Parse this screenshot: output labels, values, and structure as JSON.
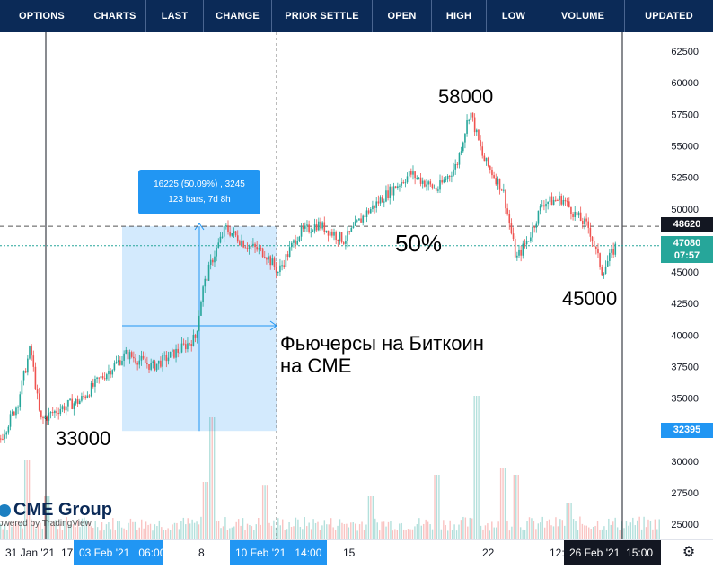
{
  "nav": {
    "tabs": [
      "OPTIONS",
      "CHARTS",
      "LAST",
      "CHANGE",
      "PRIOR SETTLE",
      "OPEN",
      "HIGH",
      "LOW",
      "VOLUME",
      "UPDATED"
    ]
  },
  "chart_data": {
    "type": "candlestick",
    "title": "",
    "colors": {
      "up": "#26a69a",
      "down": "#ef5350",
      "measure_fill": "#2196f3"
    },
    "y_axis": {
      "range": [
        23800,
        64000
      ],
      "ticks": [
        25000,
        27500,
        30000,
        32500,
        35000,
        37500,
        40000,
        42500,
        45000,
        47500,
        50000,
        52500,
        55000,
        57500,
        60000,
        62500
      ],
      "tick_labels": [
        "25000",
        "27500",
        "30000",
        "32500",
        "35000",
        "37500",
        "40000",
        "42500",
        "45000",
        "47500",
        "50000",
        "52500",
        "55000",
        "57500",
        "60000",
        "62500"
      ]
    },
    "x_axis": {
      "labels": [
        "31 Jan '21",
        "17",
        "03 Feb '21",
        "06:00",
        "8",
        "10 Feb '21",
        "14:00",
        "15",
        "22",
        "12:",
        "26 Feb '21",
        "15:00"
      ]
    },
    "price_markers": [
      {
        "label": "48620",
        "value": 48620,
        "style": "dark"
      },
      {
        "label": "47080",
        "sub": "07:57",
        "value": 47080,
        "style": "teal"
      },
      {
        "label": "32395",
        "value": 32395,
        "style": "blue"
      }
    ],
    "measure_tool": {
      "line1": "16225 (50.09%) , 3245",
      "line2": "123 bars, 7d 8h"
    },
    "annotations": {
      "high": "58000",
      "low_start": "33000",
      "low_end": "45000",
      "retrace": "50%",
      "caption_line1": "Фьючерсы на Биткоин",
      "caption_line2": "на CME"
    },
    "price_path": [
      {
        "x": 0,
        "y": 31800
      },
      {
        "x": 0.025,
        "y": 34500
      },
      {
        "x": 0.045,
        "y": 39000
      },
      {
        "x": 0.06,
        "y": 33200
      },
      {
        "x": 0.09,
        "y": 34200
      },
      {
        "x": 0.12,
        "y": 34800
      },
      {
        "x": 0.15,
        "y": 36500
      },
      {
        "x": 0.19,
        "y": 38500
      },
      {
        "x": 0.23,
        "y": 37500
      },
      {
        "x": 0.27,
        "y": 38800
      },
      {
        "x": 0.295,
        "y": 39800
      },
      {
        "x": 0.305,
        "y": 43500
      },
      {
        "x": 0.32,
        "y": 46000
      },
      {
        "x": 0.34,
        "y": 48500
      },
      {
        "x": 0.37,
        "y": 47200
      },
      {
        "x": 0.4,
        "y": 46500
      },
      {
        "x": 0.42,
        "y": 45000
      },
      {
        "x": 0.45,
        "y": 48000
      },
      {
        "x": 0.48,
        "y": 48800
      },
      {
        "x": 0.52,
        "y": 47500
      },
      {
        "x": 0.55,
        "y": 49500
      },
      {
        "x": 0.58,
        "y": 51000
      },
      {
        "x": 0.62,
        "y": 52800
      },
      {
        "x": 0.66,
        "y": 51500
      },
      {
        "x": 0.69,
        "y": 53500
      },
      {
        "x": 0.71,
        "y": 57800
      },
      {
        "x": 0.73,
        "y": 54000
      },
      {
        "x": 0.76,
        "y": 51500
      },
      {
        "x": 0.78,
        "y": 46000
      },
      {
        "x": 0.8,
        "y": 47800
      },
      {
        "x": 0.82,
        "y": 50500
      },
      {
        "x": 0.85,
        "y": 50800
      },
      {
        "x": 0.87,
        "y": 49500
      },
      {
        "x": 0.89,
        "y": 48500
      },
      {
        "x": 0.91,
        "y": 45000
      },
      {
        "x": 0.93,
        "y": 47000
      }
    ],
    "volume_profile": [
      {
        "x": 0.04,
        "v": 0.55
      },
      {
        "x": 0.07,
        "v": 0.3
      },
      {
        "x": 0.2,
        "v": 0.12
      },
      {
        "x": 0.31,
        "v": 0.4
      },
      {
        "x": 0.32,
        "v": 0.85
      },
      {
        "x": 0.4,
        "v": 0.38
      },
      {
        "x": 0.56,
        "v": 0.3
      },
      {
        "x": 0.66,
        "v": 0.45
      },
      {
        "x": 0.72,
        "v": 1.0
      },
      {
        "x": 0.76,
        "v": 0.5
      },
      {
        "x": 0.78,
        "v": 0.45
      },
      {
        "x": 0.86,
        "v": 0.25
      }
    ]
  },
  "branding": {
    "logo": "CME Group",
    "powered": "owered by TradingView"
  },
  "icons": {
    "settings": "gear-icon"
  }
}
